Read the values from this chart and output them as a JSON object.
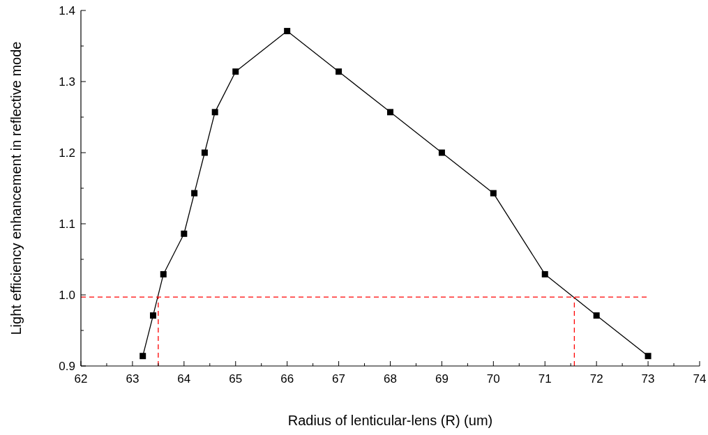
{
  "chart_data": {
    "type": "line",
    "xlabel": "Radius of lenticular-lens (R) (um)",
    "ylabel": "Light efficiency enhancement in reflective mode",
    "xlim": [
      62,
      74
    ],
    "xticks": [
      62,
      63,
      64,
      65,
      66,
      67,
      68,
      69,
      70,
      71,
      72,
      73,
      74
    ],
    "ylim": [
      0.9,
      1.4
    ],
    "yticks": [
      0.9,
      {
        "value": 1,
        "label": "1.0"
      },
      1.1,
      1.2,
      1.3,
      1.4
    ],
    "grid": false,
    "series": [
      {
        "color": "#000000",
        "marker": "square",
        "line_style": "solid",
        "x": [
          63.2,
          63.4,
          63.6,
          64,
          64.2,
          64.4,
          64.6,
          65,
          66,
          67,
          68,
          69,
          70,
          71,
          72,
          73
        ],
        "values": [
          0.914,
          0.971,
          1.029,
          1.086,
          1.143,
          1.2,
          1.257,
          1.314,
          1.371,
          1.314,
          1.257,
          1.2,
          1.143,
          1.029,
          0.971,
          0.914
        ]
      },
      {
        "color": "#ff0000",
        "marker": "none",
        "line_style": "dashed",
        "x": [
          62,
          73
        ],
        "values": [
          0.997,
          0.997
        ]
      },
      {
        "color": "#ff0000",
        "marker": "none",
        "line_style": "dashed",
        "x": [
          63.5,
          63.5
        ],
        "values": [
          0.9,
          0.997
        ]
      },
      {
        "color": "#ff0000",
        "marker": "none",
        "line_style": "dashed",
        "x": [
          71.57,
          71.57
        ],
        "values": [
          0.9,
          0.997
        ]
      }
    ]
  }
}
